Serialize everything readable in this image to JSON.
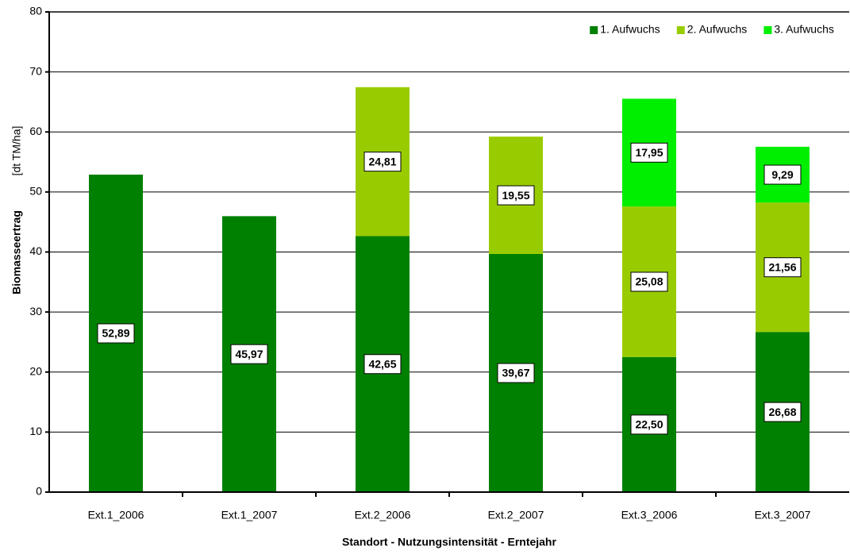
{
  "chart_data": {
    "type": "stacked_bar",
    "ylabel": "Biomasseertrag",
    "yunit": "[dt TM/ha]",
    "xlabel": "Standort - Nutzungsintensität - Erntejahr",
    "categories": [
      "Ext.1_2006",
      "Ext.1_2007",
      "Ext.2_2006",
      "Ext.2_2007",
      "Ext.3_2006",
      "Ext.3_2007"
    ],
    "series": [
      {
        "name": "1. Aufwuchs",
        "color": "#008000",
        "values": [
          52.89,
          45.97,
          42.65,
          39.67,
          22.5,
          26.68
        ],
        "value_labels": [
          "52,89",
          "45,97",
          "42,65",
          "39,67",
          "22,50",
          "26,68"
        ]
      },
      {
        "name": "2. Aufwuchs",
        "color": "#99cc00",
        "values": [
          null,
          null,
          24.81,
          19.55,
          25.08,
          21.56
        ],
        "value_labels": [
          null,
          null,
          "24,81",
          "19,55",
          "25,08",
          "21,56"
        ]
      },
      {
        "name": "3. Aufwuchs",
        "color": "#00ee00",
        "values": [
          null,
          null,
          null,
          null,
          17.95,
          9.29
        ],
        "value_labels": [
          null,
          null,
          null,
          null,
          "17,95",
          "9,29"
        ]
      }
    ],
    "ylim": [
      0,
      80
    ],
    "yticks": [
      0,
      10,
      20,
      30,
      40,
      50,
      60,
      70,
      80
    ],
    "grid": true,
    "legend": "top-right"
  }
}
